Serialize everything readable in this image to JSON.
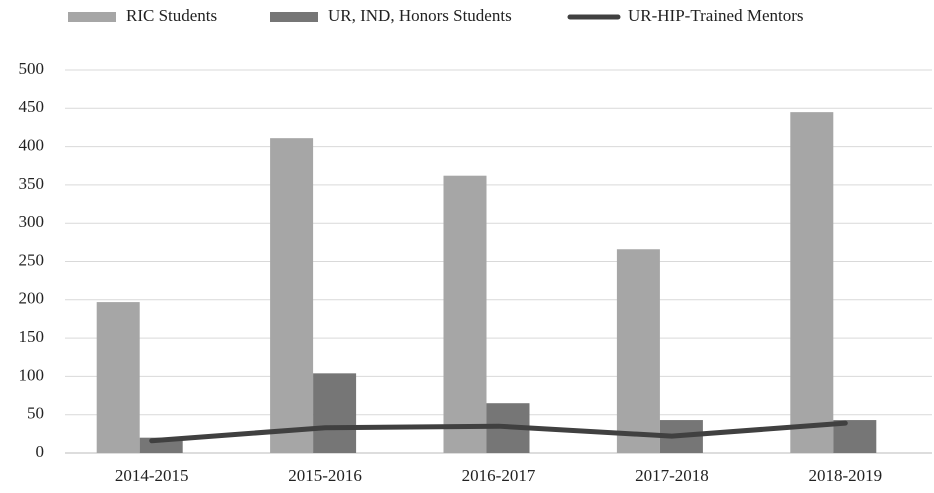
{
  "chart_data": {
    "type": "bar_line",
    "categories": [
      "2014-2015",
      "2015-2016",
      "2016-2017",
      "2017-2018",
      "2018-2019"
    ],
    "series": [
      {
        "name": "RIC Students",
        "type": "bar",
        "color": "#a6a6a6",
        "values": [
          197,
          411,
          362,
          266,
          445
        ]
      },
      {
        "name": "UR, IND, Honors Students",
        "type": "bar",
        "color": "#767676",
        "values": [
          20,
          104,
          65,
          43,
          43
        ]
      },
      {
        "name": "UR-HIP-Trained Mentors",
        "type": "line",
        "color": "#404040",
        "values": [
          16,
          33,
          35,
          22,
          39
        ]
      }
    ],
    "ylim": [
      0,
      500
    ],
    "yticks": [
      0,
      50,
      100,
      150,
      200,
      250,
      300,
      350,
      400,
      450,
      500
    ],
    "grid": true,
    "legend": "top"
  }
}
